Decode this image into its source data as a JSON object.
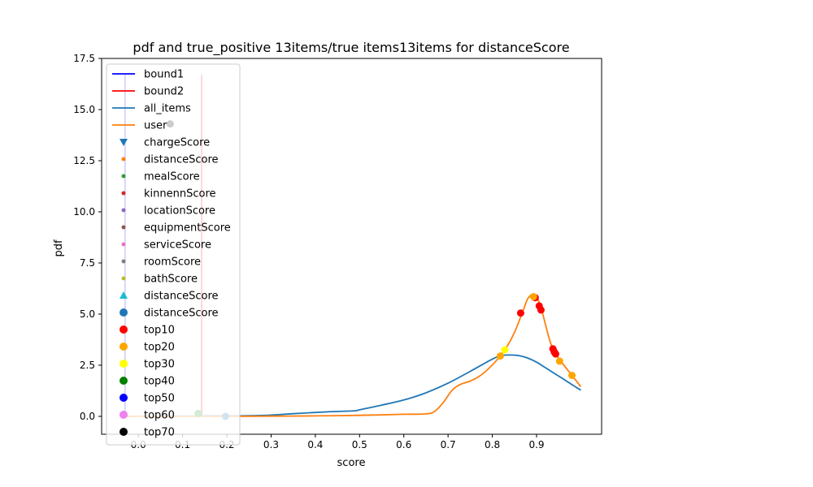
{
  "chart_data": {
    "type": "line",
    "title": "pdf and true_positive 13items/true items13items for distanceScore",
    "xlabel": "score",
    "ylabel": "pdf",
    "xlim": [
      -0.083,
      1.047
    ],
    "ylim": [
      -0.875,
      17.5
    ],
    "xticks": [
      0.0,
      0.1,
      0.2,
      0.3,
      0.4,
      0.5,
      0.6,
      0.7,
      0.8,
      0.9
    ],
    "xtick_labels": [
      "0.0",
      "0.1",
      "0.2",
      "0.3",
      "0.4",
      "0.5",
      "0.6",
      "0.7",
      "0.8",
      "0.9"
    ],
    "yticks": [
      0.0,
      2.5,
      5.0,
      7.5,
      10.0,
      12.5,
      15.0,
      17.5
    ],
    "ytick_labels": [
      "0.0",
      "2.5",
      "5.0",
      "7.5",
      "10.0",
      "12.5",
      "15.0",
      "17.5"
    ],
    "grid": false,
    "legend_position": "upper-left",
    "colors": {
      "bound1": "#0000ff",
      "bound2": "#ff0000",
      "all_items": "#1f77b4",
      "user": "#ff7f0e"
    },
    "legend": [
      {
        "label": "bound1",
        "kind": "line",
        "color": "#0000ff"
      },
      {
        "label": "bound2",
        "kind": "line",
        "color": "#ff0000"
      },
      {
        "label": "all_items",
        "kind": "line",
        "color": "#1f77b4"
      },
      {
        "label": "user",
        "kind": "line",
        "color": "#ff7f0e"
      },
      {
        "label": "chargeScore",
        "kind": "triangle-down",
        "color": "#1f77b4"
      },
      {
        "label": "distanceScore",
        "kind": "dot",
        "color": "#ff7f0e"
      },
      {
        "label": "mealScore",
        "kind": "dot",
        "color": "#2ca02c"
      },
      {
        "label": "kinnennScore",
        "kind": "dot",
        "color": "#d62728"
      },
      {
        "label": "locationScore",
        "kind": "dot",
        "color": "#9467bd"
      },
      {
        "label": "equipmentScore",
        "kind": "dot",
        "color": "#8c564b"
      },
      {
        "label": "serviceScore",
        "kind": "dot",
        "color": "#e377c2"
      },
      {
        "label": "roomScore",
        "kind": "dot",
        "color": "#7f7f7f"
      },
      {
        "label": "bathScore",
        "kind": "dot",
        "color": "#bcbd22"
      },
      {
        "label": "distanceScore",
        "kind": "triangle-up",
        "color": "#17becf"
      },
      {
        "label": "distanceScore",
        "kind": "big-dot",
        "color": "#1f77b4"
      },
      {
        "label": "top10",
        "kind": "big-dot",
        "color": "#ff0000"
      },
      {
        "label": "top20",
        "kind": "big-dot",
        "color": "#ffa500"
      },
      {
        "label": "top30",
        "kind": "big-dot",
        "color": "#ffff00"
      },
      {
        "label": "top40",
        "kind": "big-dot",
        "color": "#008000"
      },
      {
        "label": "top50",
        "kind": "big-dot",
        "color": "#0000ff"
      },
      {
        "label": "top60",
        "kind": "big-dot",
        "color": "#ee82ee"
      },
      {
        "label": "top70",
        "kind": "big-dot",
        "color": "#000000"
      }
    ],
    "vlines": [
      {
        "name": "bound1",
        "x": -0.03,
        "y": [
          0.0,
          16.7
        ],
        "color": "#0000ff"
      },
      {
        "name": "bound2",
        "x": 0.143,
        "y": [
          0.0,
          16.7
        ],
        "color": "#ff0000"
      }
    ],
    "series": [
      {
        "name": "all_items",
        "color": "#1f77b4",
        "x": [
          -0.03,
          0.05,
          0.1,
          0.15,
          0.2,
          0.25,
          0.3,
          0.35,
          0.4,
          0.45,
          0.49,
          0.5,
          0.55,
          0.6,
          0.65,
          0.7,
          0.75,
          0.8,
          0.82,
          0.84,
          0.86,
          0.88,
          0.9,
          0.92,
          0.94,
          0.96,
          0.98,
          1.0
        ],
        "y": [
          0.0,
          0.01,
          0.01,
          0.02,
          0.02,
          0.03,
          0.06,
          0.13,
          0.19,
          0.24,
          0.27,
          0.32,
          0.55,
          0.8,
          1.15,
          1.62,
          2.2,
          2.8,
          2.97,
          3.0,
          2.97,
          2.85,
          2.65,
          2.38,
          2.1,
          1.83,
          1.55,
          1.28
        ]
      },
      {
        "name": "user",
        "color": "#ff7f0e",
        "x": [
          -0.03,
          0.1,
          0.2,
          0.3,
          0.4,
          0.5,
          0.6,
          0.65,
          0.67,
          0.69,
          0.71,
          0.73,
          0.75,
          0.77,
          0.79,
          0.81,
          0.83,
          0.85,
          0.87,
          0.88,
          0.89,
          0.9,
          0.91,
          0.92,
          0.93,
          0.94,
          0.96,
          0.98,
          1.0
        ],
        "y": [
          0.0,
          0.0,
          0.0,
          0.01,
          0.02,
          0.05,
          0.1,
          0.12,
          0.25,
          0.7,
          1.3,
          1.58,
          1.72,
          1.95,
          2.3,
          2.75,
          3.3,
          4.1,
          5.2,
          5.75,
          5.95,
          5.85,
          5.3,
          4.5,
          3.7,
          3.15,
          2.55,
          2.0,
          1.45
        ]
      }
    ],
    "markers": [
      {
        "series": "top10",
        "color": "#ff0000",
        "points": [
          [
            0.864,
            5.05
          ],
          [
            0.897,
            5.8
          ],
          [
            0.906,
            5.4
          ],
          [
            0.91,
            5.2
          ],
          [
            0.937,
            3.3
          ],
          [
            0.94,
            3.15
          ],
          [
            0.943,
            3.05
          ]
        ]
      },
      {
        "series": "top20",
        "color": "#ffa500",
        "points": [
          [
            0.818,
            2.95
          ],
          [
            0.893,
            5.85
          ],
          [
            0.952,
            2.7
          ],
          [
            0.98,
            2.0
          ]
        ]
      },
      {
        "series": "top30",
        "color": "#ffff00",
        "points": [
          [
            0.828,
            3.25
          ]
        ]
      },
      {
        "series": "distanceScore",
        "color": "#1f77b4",
        "points": [
          [
            0.197,
            0.0
          ]
        ]
      },
      {
        "series": "mealScore",
        "color": "#2ca02c",
        "points": [
          [
            0.135,
            0.14
          ]
        ]
      },
      {
        "series": "top70",
        "color": "#000000",
        "points": [
          [
            0.072,
            14.3
          ]
        ]
      }
    ]
  }
}
